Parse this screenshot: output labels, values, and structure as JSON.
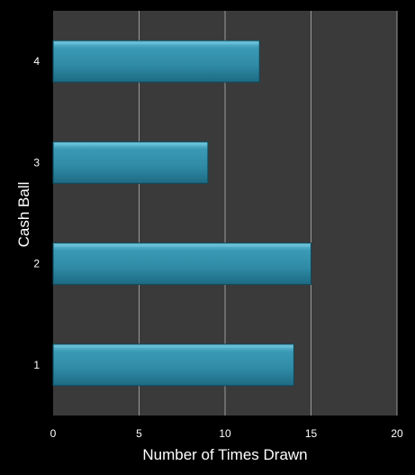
{
  "chart_data": {
    "type": "bar",
    "orientation": "horizontal",
    "categories": [
      "1",
      "2",
      "3",
      "4"
    ],
    "values": [
      14,
      15,
      9,
      12
    ],
    "xlabel": "Number of Times Drawn",
    "ylabel": "Cash Ball",
    "xlim": [
      0,
      20
    ],
    "x_ticks": [
      "0",
      "5",
      "10",
      "15",
      "20"
    ],
    "grid": "vertical",
    "legend": "none",
    "colors": {
      "background": "#000000",
      "plot_area": "#3a3a3a",
      "gridline": "#9a9a9a",
      "bar_fill": "#2f8aa5",
      "bar_highlight": "#6cc3da",
      "bar_edge": "#0f4a5c",
      "text": "#ffffff"
    }
  }
}
